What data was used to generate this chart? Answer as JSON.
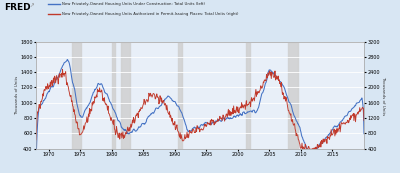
{
  "legend_blue": "New Privately-Owned Housing Units Under Construction: Total Units (left)",
  "legend_red": "New Privately-Owned Housing Units Authorized in Permit-Issuing Places: Total Units (right)",
  "ylabel_left": "Thousands of Units",
  "ylabel_right": "Thousands of Units",
  "ylim_left": [
    400,
    1800
  ],
  "ylim_right": [
    400,
    3200
  ],
  "yticks_left": [
    400,
    600,
    800,
    1000,
    1200,
    1400,
    1600,
    1800
  ],
  "yticks_right": [
    400,
    800,
    1200,
    1600,
    2000,
    2400,
    2800,
    3200
  ],
  "xlim": [
    1968,
    2020
  ],
  "xticks": [
    1970,
    1975,
    1980,
    1985,
    1990,
    1995,
    2000,
    2005,
    2010,
    2015
  ],
  "background_color": "#d8e6f3",
  "plot_bg_color": "#e8eff8",
  "grid_color": "#ffffff",
  "blue_color": "#4472c4",
  "red_color": "#c0392b",
  "recession_color": "#d0d0d0",
  "recession_alpha": 0.85,
  "recession_bands": [
    [
      1973.75,
      1975.17
    ],
    [
      1980.0,
      1980.5
    ],
    [
      1981.5,
      1982.92
    ],
    [
      1990.5,
      1991.17
    ],
    [
      2001.25,
      2001.92
    ],
    [
      2007.92,
      2009.5
    ]
  ]
}
